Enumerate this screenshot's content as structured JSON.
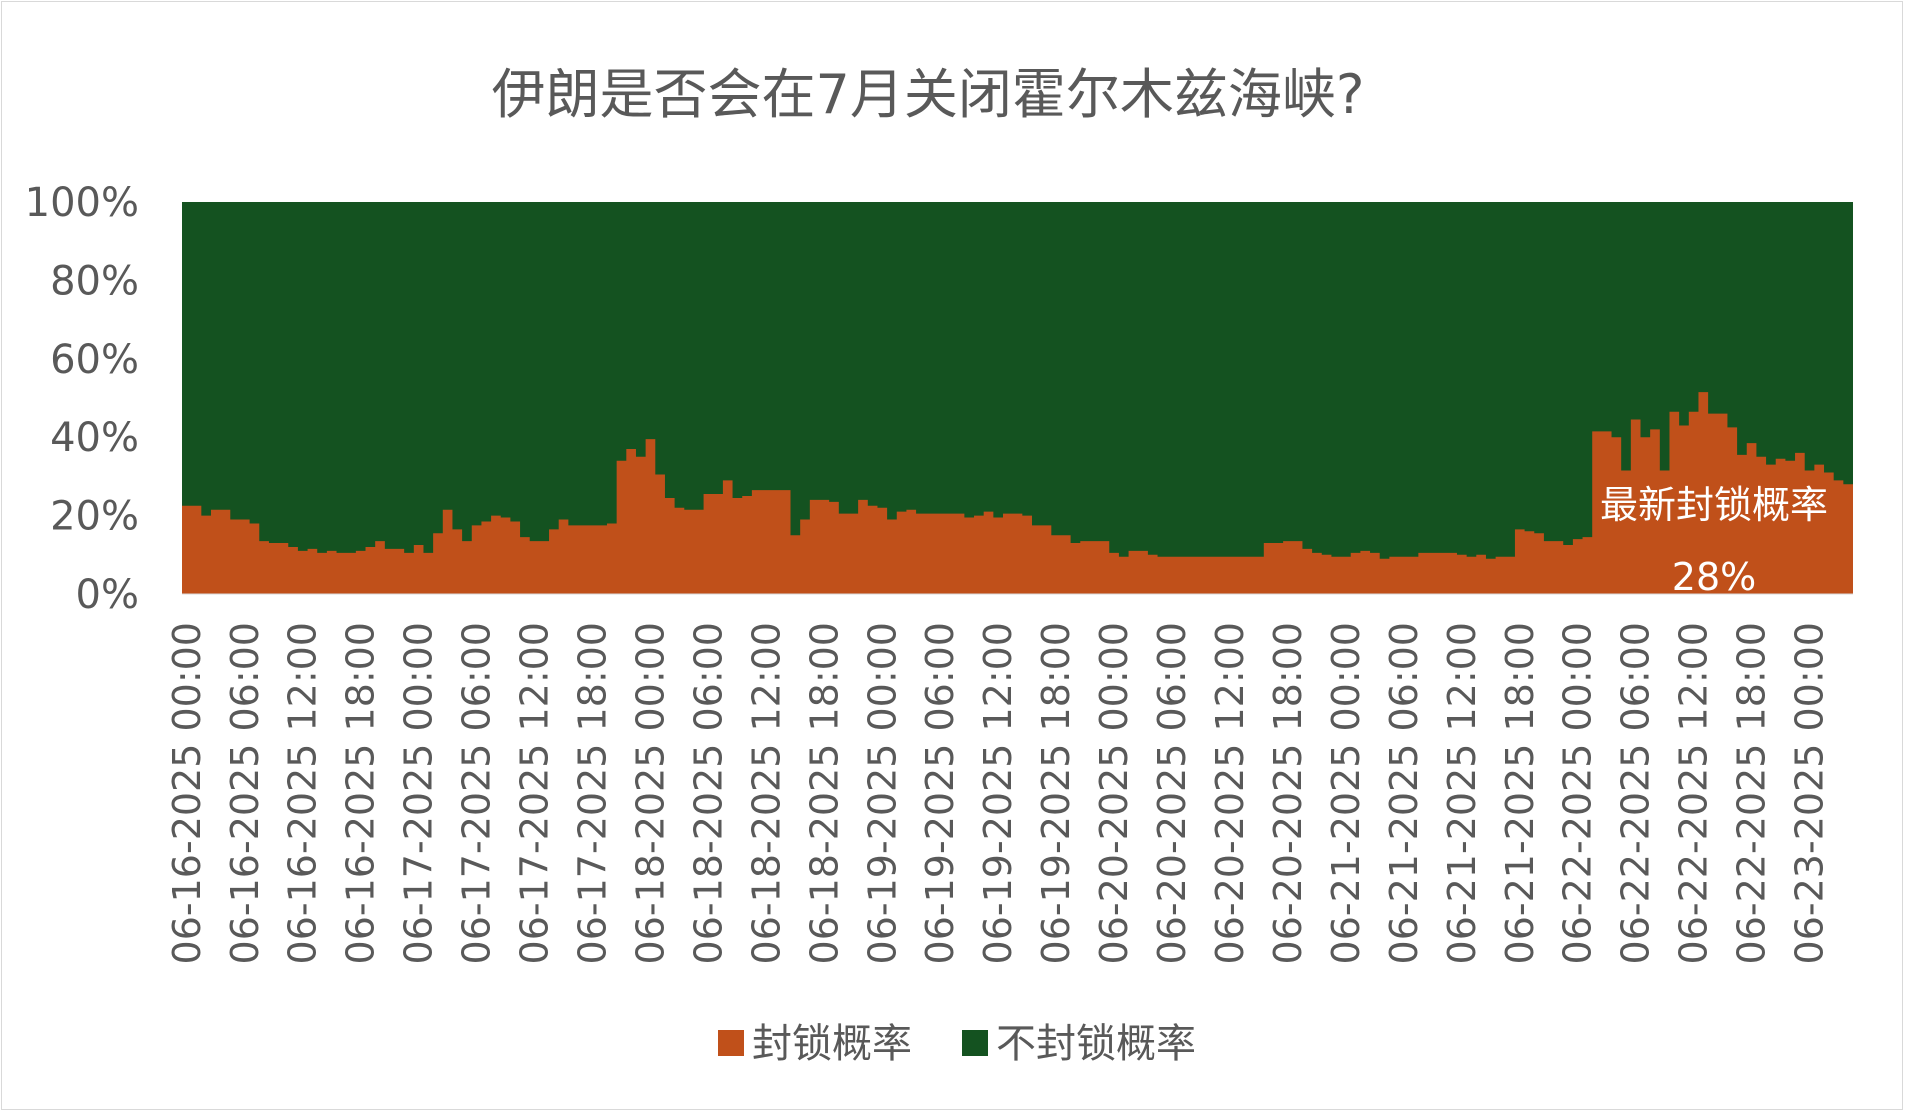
{
  "chart_data": {
    "type": "area",
    "stacked": true,
    "step": true,
    "title": "伊朗是否会在7月关闭霍尔木兹海峡?",
    "xlabel": "",
    "ylabel": "",
    "ylim": [
      0,
      100
    ],
    "y_ticks": [
      "0%",
      "20%",
      "40%",
      "60%",
      "80%",
      "100%"
    ],
    "x_ticks": [
      "06-16-2025 00:00",
      "06-16-2025 06:00",
      "06-16-2025 12:00",
      "06-16-2025 18:00",
      "06-17-2025 00:00",
      "06-17-2025 06:00",
      "06-17-2025 12:00",
      "06-17-2025 18:00",
      "06-18-2025 00:00",
      "06-18-2025 06:00",
      "06-18-2025 12:00",
      "06-18-2025 18:00",
      "06-19-2025 00:00",
      "06-19-2025 06:00",
      "06-19-2025 12:00",
      "06-19-2025 18:00",
      "06-20-2025 00:00",
      "06-20-2025 06:00",
      "06-20-2025 12:00",
      "06-20-2025 18:00",
      "06-21-2025 00:00",
      "06-21-2025 06:00",
      "06-21-2025 12:00",
      "06-21-2025 18:00",
      "06-22-2025 00:00",
      "06-22-2025 06:00",
      "06-22-2025 12:00",
      "06-22-2025 18:00",
      "06-23-2025 00:00"
    ],
    "grid": false,
    "legend_position": "bottom",
    "series": [
      {
        "name": "封锁概率",
        "color": "#c0501a",
        "values": [
          22.5,
          22.5,
          20,
          21.5,
          21.5,
          19,
          19,
          18,
          13.5,
          13,
          13,
          12,
          11,
          11.5,
          10.5,
          11,
          10.5,
          10.5,
          11,
          12,
          13.5,
          11.5,
          11.5,
          10.5,
          12.5,
          10.5,
          15.5,
          21.5,
          16.5,
          13.5,
          17.5,
          18.5,
          20,
          19.5,
          18.5,
          14.5,
          13.5,
          13.5,
          16.5,
          19,
          17.5,
          17.5,
          17.5,
          17.5,
          18,
          34,
          37,
          35,
          39.5,
          30.5,
          24.5,
          22,
          21.5,
          21.5,
          25.5,
          25.5,
          29,
          24.5,
          25,
          26.5,
          26.5,
          26.5,
          26.5,
          15,
          19,
          24,
          24,
          23.5,
          20.5,
          20.5,
          24,
          22.5,
          22,
          19,
          21,
          21.5,
          20.5,
          20.5,
          20.5,
          20.5,
          20.5,
          19.5,
          20,
          21,
          19.5,
          20.5,
          20.5,
          20,
          17.5,
          17.5,
          15,
          15,
          13,
          13.5,
          13.5,
          13.5,
          10.5,
          9.5,
          11,
          11,
          10,
          9.5,
          9.5,
          9.5,
          9.5,
          9.5,
          9.5,
          9.5,
          9.5,
          9.5,
          9.5,
          9.5,
          13,
          13,
          13.5,
          13.5,
          11.5,
          10.5,
          10,
          9.5,
          9.5,
          10.5,
          11,
          10.5,
          9,
          9.5,
          9.5,
          9.5,
          10.5,
          10.5,
          10.5,
          10.5,
          10,
          9.5,
          10,
          9,
          9.5,
          9.5,
          16.5,
          16,
          15.5,
          13.5,
          13.5,
          12.5,
          14,
          14.5,
          41.5,
          41.5,
          40,
          31.5,
          44.5,
          40,
          42,
          31.5,
          46.5,
          43,
          46.5,
          51.5,
          46,
          46,
          42.5,
          35.5,
          38.5,
          35,
          33,
          34.5,
          34,
          36,
          31.5,
          33,
          31,
          29,
          28
        ]
      },
      {
        "name": "不封锁概率",
        "color": "#145220",
        "values": "100 - 封锁概率"
      }
    ],
    "annotations": [
      {
        "text": "最新封锁概率",
        "color": "#ffffff"
      },
      {
        "text": "28%",
        "color": "#ffffff"
      }
    ]
  }
}
